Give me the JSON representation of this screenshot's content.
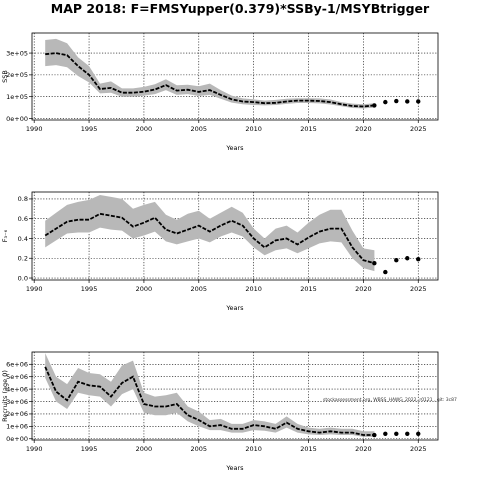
{
  "title": "MAP 2018: F=FMSYupper(0.379)*SSBy-1/MSYBtrigger",
  "chart_data": [
    {
      "type": "line",
      "name": "ssb-panel",
      "xlabel": "Years",
      "ylabel": "SSB",
      "xlim": [
        1989.8,
        2026.8
      ],
      "ylim": [
        -7000,
        392000
      ],
      "xticks": [
        1990,
        1995,
        2000,
        2005,
        2010,
        2015,
        2020,
        2025
      ],
      "yticks": [
        0,
        100000,
        200000,
        300000
      ],
      "ytick_labels": [
        "0e+00",
        "1e+05",
        "2e+05",
        "3e+05"
      ],
      "grid": true,
      "band_color": "#b8b8b8",
      "line_color": "#000000",
      "x": [
        1991,
        1992,
        1993,
        1994,
        1995,
        1996,
        1997,
        1998,
        1999,
        2000,
        2001,
        2002,
        2003,
        2004,
        2005,
        2006,
        2007,
        2008,
        2009,
        2010,
        2011,
        2012,
        2013,
        2014,
        2015,
        2016,
        2017,
        2018,
        2019,
        2020,
        2021
      ],
      "median": [
        295000,
        300000,
        290000,
        240000,
        200000,
        135000,
        140000,
        118000,
        118000,
        123000,
        133000,
        153000,
        128000,
        132000,
        122000,
        130000,
        108000,
        88000,
        78000,
        75000,
        70000,
        72000,
        78000,
        82000,
        82000,
        80000,
        75000,
        65000,
        57000,
        55000,
        60000
      ],
      "upper": [
        360000,
        365000,
        345000,
        280000,
        240000,
        160000,
        170000,
        138000,
        138000,
        145000,
        157000,
        180000,
        152000,
        155000,
        148000,
        160000,
        130000,
        105000,
        92000,
        88000,
        82000,
        85000,
        90000,
        93000,
        93000,
        92000,
        87000,
        75000,
        68000,
        65000,
        70000
      ],
      "lower": [
        240000,
        245000,
        235000,
        195000,
        165000,
        115000,
        118000,
        100000,
        100000,
        105000,
        112000,
        130000,
        108000,
        112000,
        103000,
        108000,
        90000,
        73000,
        65000,
        62000,
        60000,
        62000,
        67000,
        71000,
        71000,
        69000,
        64000,
        56000,
        48000,
        46000,
        50000
      ],
      "projection_x": [
        2021,
        2022,
        2023,
        2024,
        2025
      ],
      "projection": [
        60000,
        75000,
        80000,
        78000,
        78000
      ],
      "watermark": ""
    },
    {
      "type": "line",
      "name": "f-panel",
      "xlabel": "Years",
      "ylabel": "F₃₋₆",
      "xlim": [
        1989.8,
        2026.8
      ],
      "ylim": [
        -0.02,
        0.87
      ],
      "xticks": [
        1990,
        1995,
        2000,
        2005,
        2010,
        2015,
        2020,
        2025
      ],
      "yticks": [
        0,
        0.2,
        0.4,
        0.6,
        0.8
      ],
      "ytick_labels": [
        "0.0",
        "0.2",
        "0.4",
        "0.6",
        "0.8"
      ],
      "grid": true,
      "band_color": "#b8b8b8",
      "line_color": "#000000",
      "x": [
        1991,
        1992,
        1993,
        1994,
        1995,
        1996,
        1997,
        1998,
        1999,
        2000,
        2001,
        2002,
        2003,
        2004,
        2005,
        2006,
        2007,
        2008,
        2009,
        2010,
        2011,
        2012,
        2013,
        2014,
        2015,
        2016,
        2017,
        2018,
        2019,
        2020,
        2021
      ],
      "median": [
        0.43,
        0.5,
        0.57,
        0.59,
        0.59,
        0.65,
        0.63,
        0.61,
        0.52,
        0.56,
        0.61,
        0.49,
        0.45,
        0.49,
        0.53,
        0.47,
        0.53,
        0.58,
        0.53,
        0.4,
        0.31,
        0.38,
        0.4,
        0.34,
        0.41,
        0.47,
        0.5,
        0.5,
        0.31,
        0.18,
        0.15
      ],
      "upper": [
        0.58,
        0.66,
        0.74,
        0.77,
        0.79,
        0.84,
        0.82,
        0.8,
        0.7,
        0.74,
        0.77,
        0.64,
        0.59,
        0.65,
        0.68,
        0.6,
        0.66,
        0.72,
        0.66,
        0.5,
        0.4,
        0.5,
        0.53,
        0.46,
        0.56,
        0.64,
        0.69,
        0.69,
        0.48,
        0.3,
        0.28
      ],
      "lower": [
        0.31,
        0.38,
        0.45,
        0.46,
        0.46,
        0.51,
        0.49,
        0.48,
        0.4,
        0.43,
        0.47,
        0.37,
        0.34,
        0.37,
        0.4,
        0.36,
        0.42,
        0.46,
        0.42,
        0.31,
        0.23,
        0.28,
        0.3,
        0.25,
        0.3,
        0.35,
        0.37,
        0.36,
        0.2,
        0.1,
        0.07
      ],
      "projection_x": [
        2021,
        2022,
        2023,
        2024,
        2025
      ],
      "projection": [
        0.15,
        0.06,
        0.18,
        0.2,
        0.19
      ],
      "watermark": ""
    },
    {
      "type": "line",
      "name": "rec-panel",
      "xlabel": "Years",
      "ylabel": "Recruits (age 0)",
      "xlim": [
        1989.8,
        2026.8
      ],
      "ylim": [
        -100000,
        6990000
      ],
      "xticks": [
        1990,
        1995,
        2000,
        2005,
        2010,
        2015,
        2020,
        2025
      ],
      "yticks": [
        0,
        1000000,
        2000000,
        3000000,
        4000000,
        5000000,
        6000000
      ],
      "ytick_labels": [
        "0e+00",
        "1e+06",
        "2e+06",
        "3e+06",
        "4e+06",
        "5e+06",
        "6e+06"
      ],
      "grid": true,
      "band_color": "#b8b8b8",
      "line_color": "#000000",
      "x": [
        1991,
        1992,
        1993,
        1994,
        1995,
        1996,
        1997,
        1998,
        1999,
        2000,
        2001,
        2002,
        2003,
        2004,
        2005,
        2006,
        2007,
        2008,
        2009,
        2010,
        2011,
        2012,
        2013,
        2014,
        2015,
        2016,
        2017,
        2018,
        2019,
        2020,
        2021
      ],
      "median": [
        5800000,
        3800000,
        3100000,
        4600000,
        4300000,
        4200000,
        3400000,
        4500000,
        5000000,
        2800000,
        2600000,
        2600000,
        2800000,
        1900000,
        1500000,
        1000000,
        1100000,
        800000,
        800000,
        1100000,
        1000000,
        800000,
        1300000,
        800000,
        600000,
        500000,
        600000,
        500000,
        500000,
        300000,
        300000
      ],
      "upper": [
        6900000,
        5000000,
        4400000,
        5700000,
        5300000,
        5200000,
        4600000,
        5900000,
        6300000,
        3700000,
        3400000,
        3500000,
        3700000,
        2600000,
        2200000,
        1500000,
        1600000,
        1200000,
        1200000,
        1500000,
        1400000,
        1200000,
        1800000,
        1200000,
        900000,
        800000,
        900000,
        800000,
        800000,
        600000,
        600000
      ],
      "lower": [
        4900000,
        3000000,
        2400000,
        3700000,
        3500000,
        3400000,
        2600000,
        3600000,
        4000000,
        2100000,
        1900000,
        1900000,
        2100000,
        1400000,
        1000000,
        700000,
        700000,
        500000,
        500000,
        700000,
        650000,
        500000,
        900000,
        500000,
        350000,
        300000,
        350000,
        300000,
        300000,
        150000,
        150000
      ],
      "projection_x": [
        2021,
        2022,
        2023,
        2024,
        2025
      ],
      "projection": [
        300000,
        400000,
        400000,
        400000,
        400000
      ],
      "watermark": "stockassessment.org, WBSS_HAWG_2022, r0121 , git: 3c87"
    }
  ]
}
